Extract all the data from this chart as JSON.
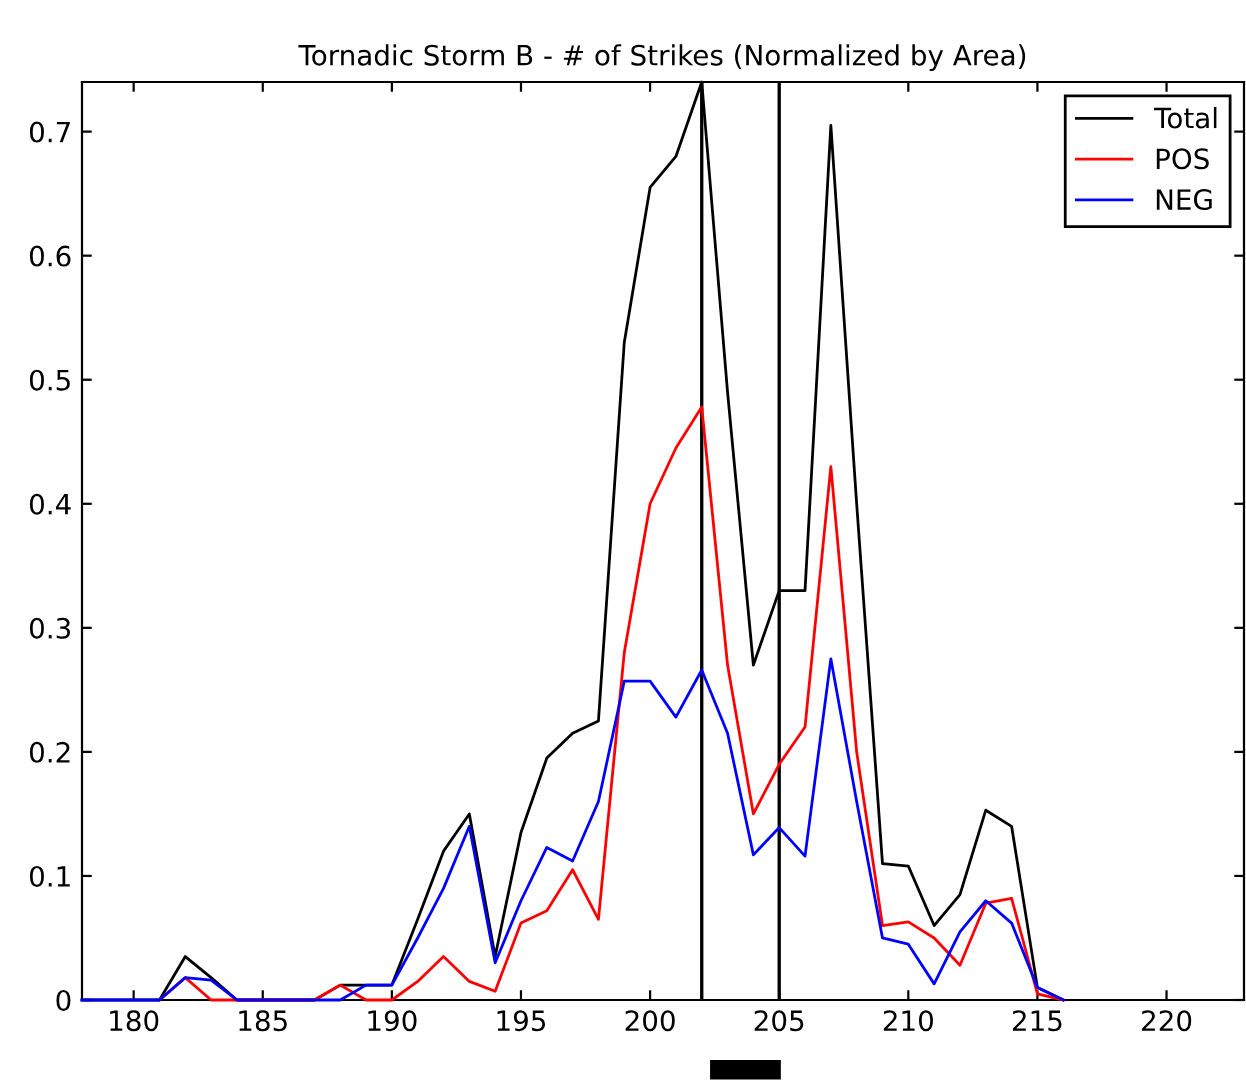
{
  "chart_data": {
    "type": "line",
    "title": "Tornadic Storm B - # of Strikes (Normalized by Area)",
    "x": [
      178,
      179,
      180,
      181,
      182,
      183,
      184,
      185,
      186,
      187,
      188,
      189,
      190,
      191,
      192,
      193,
      194,
      195,
      196,
      197,
      198,
      199,
      200,
      201,
      202,
      203,
      204,
      205,
      206,
      207,
      208,
      209,
      210,
      211,
      212,
      213,
      214,
      215,
      216
    ],
    "series": [
      {
        "name": "Total",
        "color": "#000000",
        "values": [
          0,
          0,
          0,
          0,
          0.035,
          0.018,
          0,
          0,
          0,
          0,
          0.012,
          0.012,
          0.012,
          0.065,
          0.12,
          0.15,
          0.035,
          0.135,
          0.195,
          0.215,
          0.225,
          0.53,
          0.655,
          0.68,
          0.74,
          0.49,
          0.27,
          0.33,
          0.33,
          0.705,
          0.4,
          0.11,
          0.108,
          0.06,
          0.085,
          0.153,
          0.14,
          0.01,
          0
        ]
      },
      {
        "name": "POS",
        "color": "#ff0000",
        "values": [
          null,
          null,
          null,
          0,
          0.018,
          0,
          0,
          0,
          0,
          0,
          0.012,
          0,
          0,
          0.015,
          0.035,
          0.015,
          0.007,
          0.062,
          0.072,
          0.105,
          0.065,
          0.28,
          0.4,
          0.445,
          0.478,
          0.27,
          0.15,
          0.19,
          0.22,
          0.43,
          0.2,
          0.06,
          0.063,
          0.05,
          0.028,
          0.078,
          0.082,
          0.005,
          0
        ]
      },
      {
        "name": "NEG",
        "color": "#0000ff",
        "values": [
          0,
          0,
          0,
          0,
          0.018,
          0.016,
          0,
          0,
          0,
          0,
          0,
          0.012,
          0.012,
          0.05,
          0.09,
          0.14,
          0.03,
          0.08,
          0.123,
          0.112,
          0.16,
          0.257,
          0.257,
          0.228,
          0.266,
          0.215,
          0.117,
          0.139,
          0.116,
          0.275,
          0.16,
          0.05,
          0.045,
          0.013,
          0.055,
          0.08,
          0.062,
          0.01,
          0
        ]
      }
    ],
    "xlim": [
      178,
      223
    ],
    "ylim": [
      0,
      0.74
    ],
    "xticks": [
      180,
      185,
      190,
      195,
      200,
      205,
      210,
      215,
      220
    ],
    "yticks": [
      0,
      0.1,
      0.2,
      0.3,
      0.4,
      0.5,
      0.6,
      0.7
    ],
    "ref_lines": [
      {
        "axis": "x",
        "value": 202,
        "color": "#000000"
      },
      {
        "axis": "x",
        "value": 205,
        "color": "#000000"
      }
    ],
    "legend": "top right",
    "grid": false,
    "line_style": "solid",
    "marker": "none"
  }
}
